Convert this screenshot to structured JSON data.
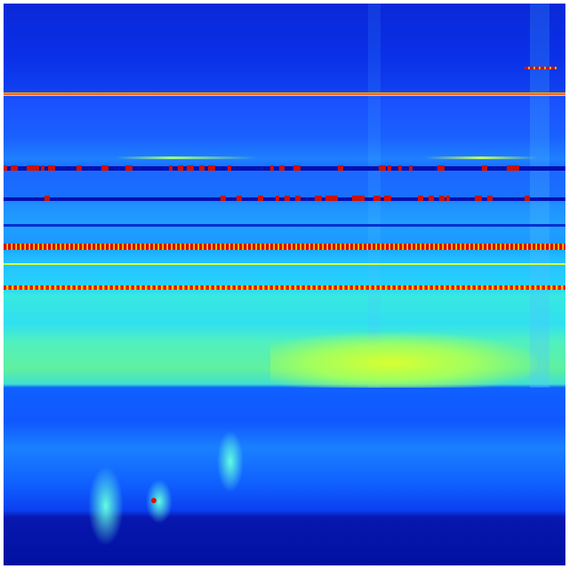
{
  "colormap": "jet",
  "colors": {
    "low": "#00008f",
    "mid_low": "#0050ff",
    "mid": "#20d0ff",
    "mid_high": "#d8ff30",
    "high": "#d01000"
  }
}
